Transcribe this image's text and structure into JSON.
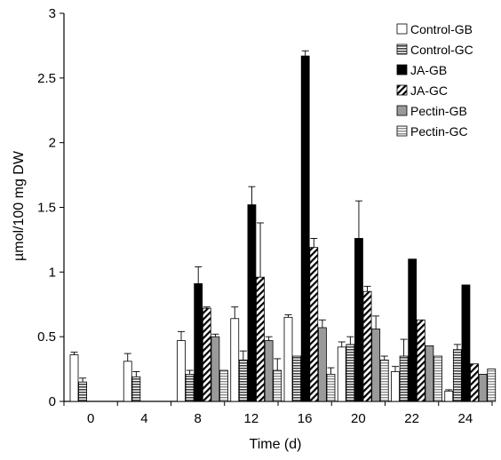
{
  "chart_data": {
    "type": "bar",
    "title": "",
    "xlabel": "Time (d)",
    "ylabel": "µmol/100 mg DW",
    "ylim": [
      0,
      3
    ],
    "yticks": [
      "0",
      "0.5",
      "1",
      "1.5",
      "2",
      "2.5",
      "3"
    ],
    "categories": [
      "0",
      "4",
      "8",
      "12",
      "16",
      "20",
      "22",
      "24"
    ],
    "grid": false,
    "legend_position": "top-right",
    "series": [
      {
        "name": "Control-GB",
        "pattern": "white",
        "values": [
          0.36,
          0.31,
          0.47,
          0.64,
          0.65,
          0.42,
          0.23,
          0.08
        ],
        "errors": [
          0.02,
          0.06,
          0.07,
          0.09,
          0.02,
          0.04,
          0.04,
          0.01
        ]
      },
      {
        "name": "Control-GC",
        "pattern": "hstripe-dark",
        "values": [
          0.15,
          0.19,
          0.21,
          0.32,
          0.35,
          0.44,
          0.35,
          0.4
        ],
        "errors": [
          0.03,
          0.04,
          0.03,
          0.07,
          0.0,
          0.06,
          0.13,
          0.04
        ]
      },
      {
        "name": "JA-GB",
        "pattern": "black",
        "values": [
          null,
          null,
          0.91,
          1.52,
          2.67,
          1.26,
          1.1,
          0.9
        ],
        "errors": [
          null,
          null,
          0.13,
          0.14,
          0.04,
          0.29,
          0.0,
          0.0
        ]
      },
      {
        "name": "JA-GC",
        "pattern": "diagonal",
        "values": [
          null,
          null,
          0.72,
          0.96,
          1.19,
          0.85,
          0.63,
          0.29
        ],
        "errors": [
          null,
          null,
          0.01,
          0.42,
          0.07,
          0.04,
          0.0,
          0.0
        ]
      },
      {
        "name": "Pectin-GB",
        "pattern": "gray",
        "values": [
          null,
          null,
          0.5,
          0.47,
          0.57,
          0.56,
          0.43,
          0.21
        ],
        "errors": [
          null,
          null,
          0.02,
          0.03,
          0.06,
          0.1,
          0.0,
          0.0
        ]
      },
      {
        "name": "Pectin-GC",
        "pattern": "hstripe-light",
        "values": [
          null,
          null,
          0.24,
          0.24,
          0.21,
          0.32,
          0.35,
          0.25
        ],
        "errors": [
          null,
          null,
          0.0,
          0.09,
          0.05,
          0.03,
          0.0,
          0.0
        ]
      }
    ]
  }
}
